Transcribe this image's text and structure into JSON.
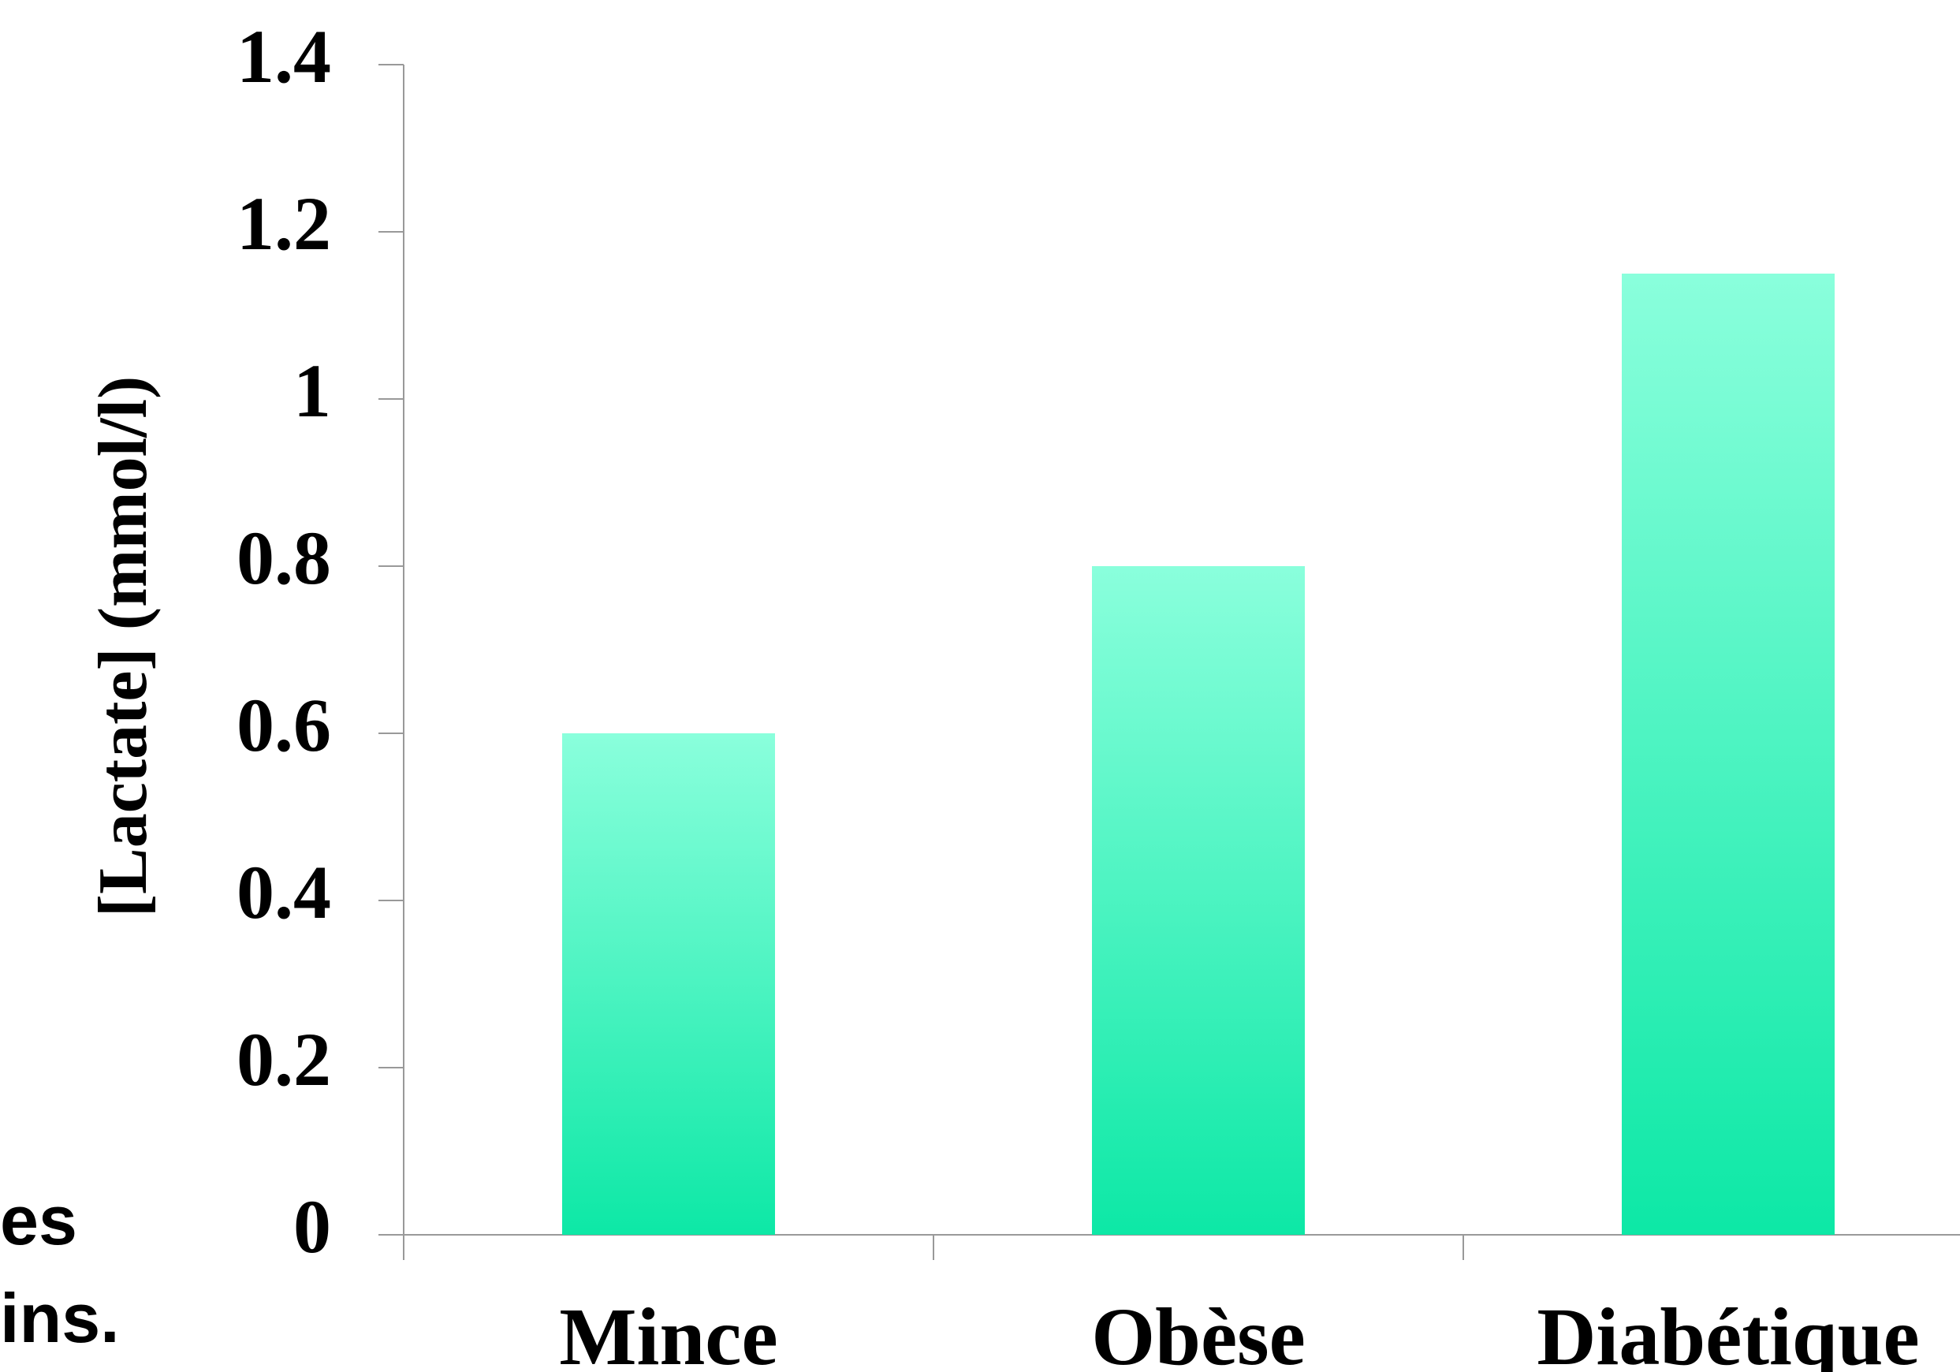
{
  "side_fragment": [
    "es",
    "ins."
  ],
  "chart_data": {
    "type": "bar",
    "categories": [
      "Mince",
      "Obèse",
      "Diabétique"
    ],
    "values": [
      0.6,
      0.8,
      1.15
    ],
    "ylabel": "[Lactate] (mmol/l)",
    "ylim": [
      0,
      1.4
    ],
    "yticks": [
      "0",
      "0.2",
      "0.4",
      "0.6",
      "0.8",
      "1",
      "1.2",
      "1.4"
    ],
    "grid": false,
    "bar_color_top": "#8affdc",
    "bar_color_bottom": "#0de8a6"
  }
}
